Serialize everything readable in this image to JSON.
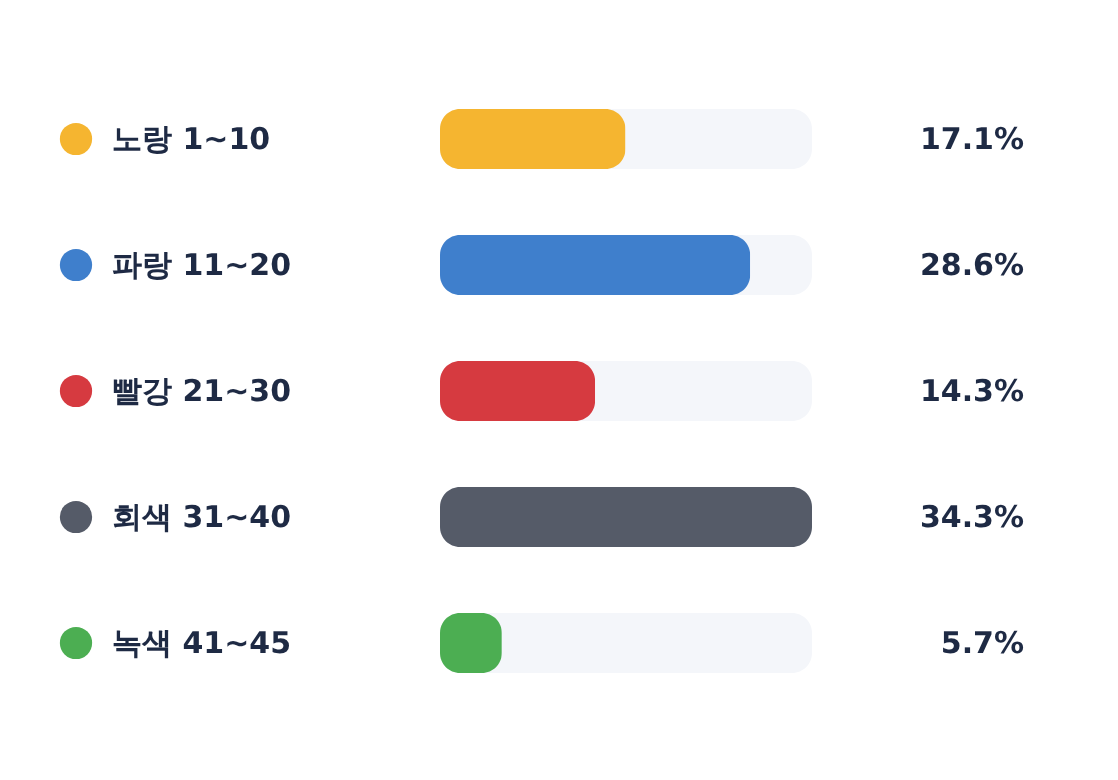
{
  "chart_data": {
    "type": "bar",
    "orientation": "horizontal",
    "categories": [
      "노랑 1~10",
      "파랑 11~20",
      "빨강 21~30",
      "회색 31~40",
      "녹색 41~45"
    ],
    "values": [
      17.1,
      28.6,
      14.3,
      34.3,
      5.7
    ],
    "colors": [
      "#f5b530",
      "#3f7fcc",
      "#d63a40",
      "#555b68",
      "#4cae52"
    ],
    "value_labels": [
      "17.1%",
      "28.6%",
      "14.3%",
      "34.3%",
      "5.7%"
    ],
    "xlim": [
      0,
      34.3
    ],
    "tick_labels": "y",
    "grid": false,
    "legend": false
  }
}
